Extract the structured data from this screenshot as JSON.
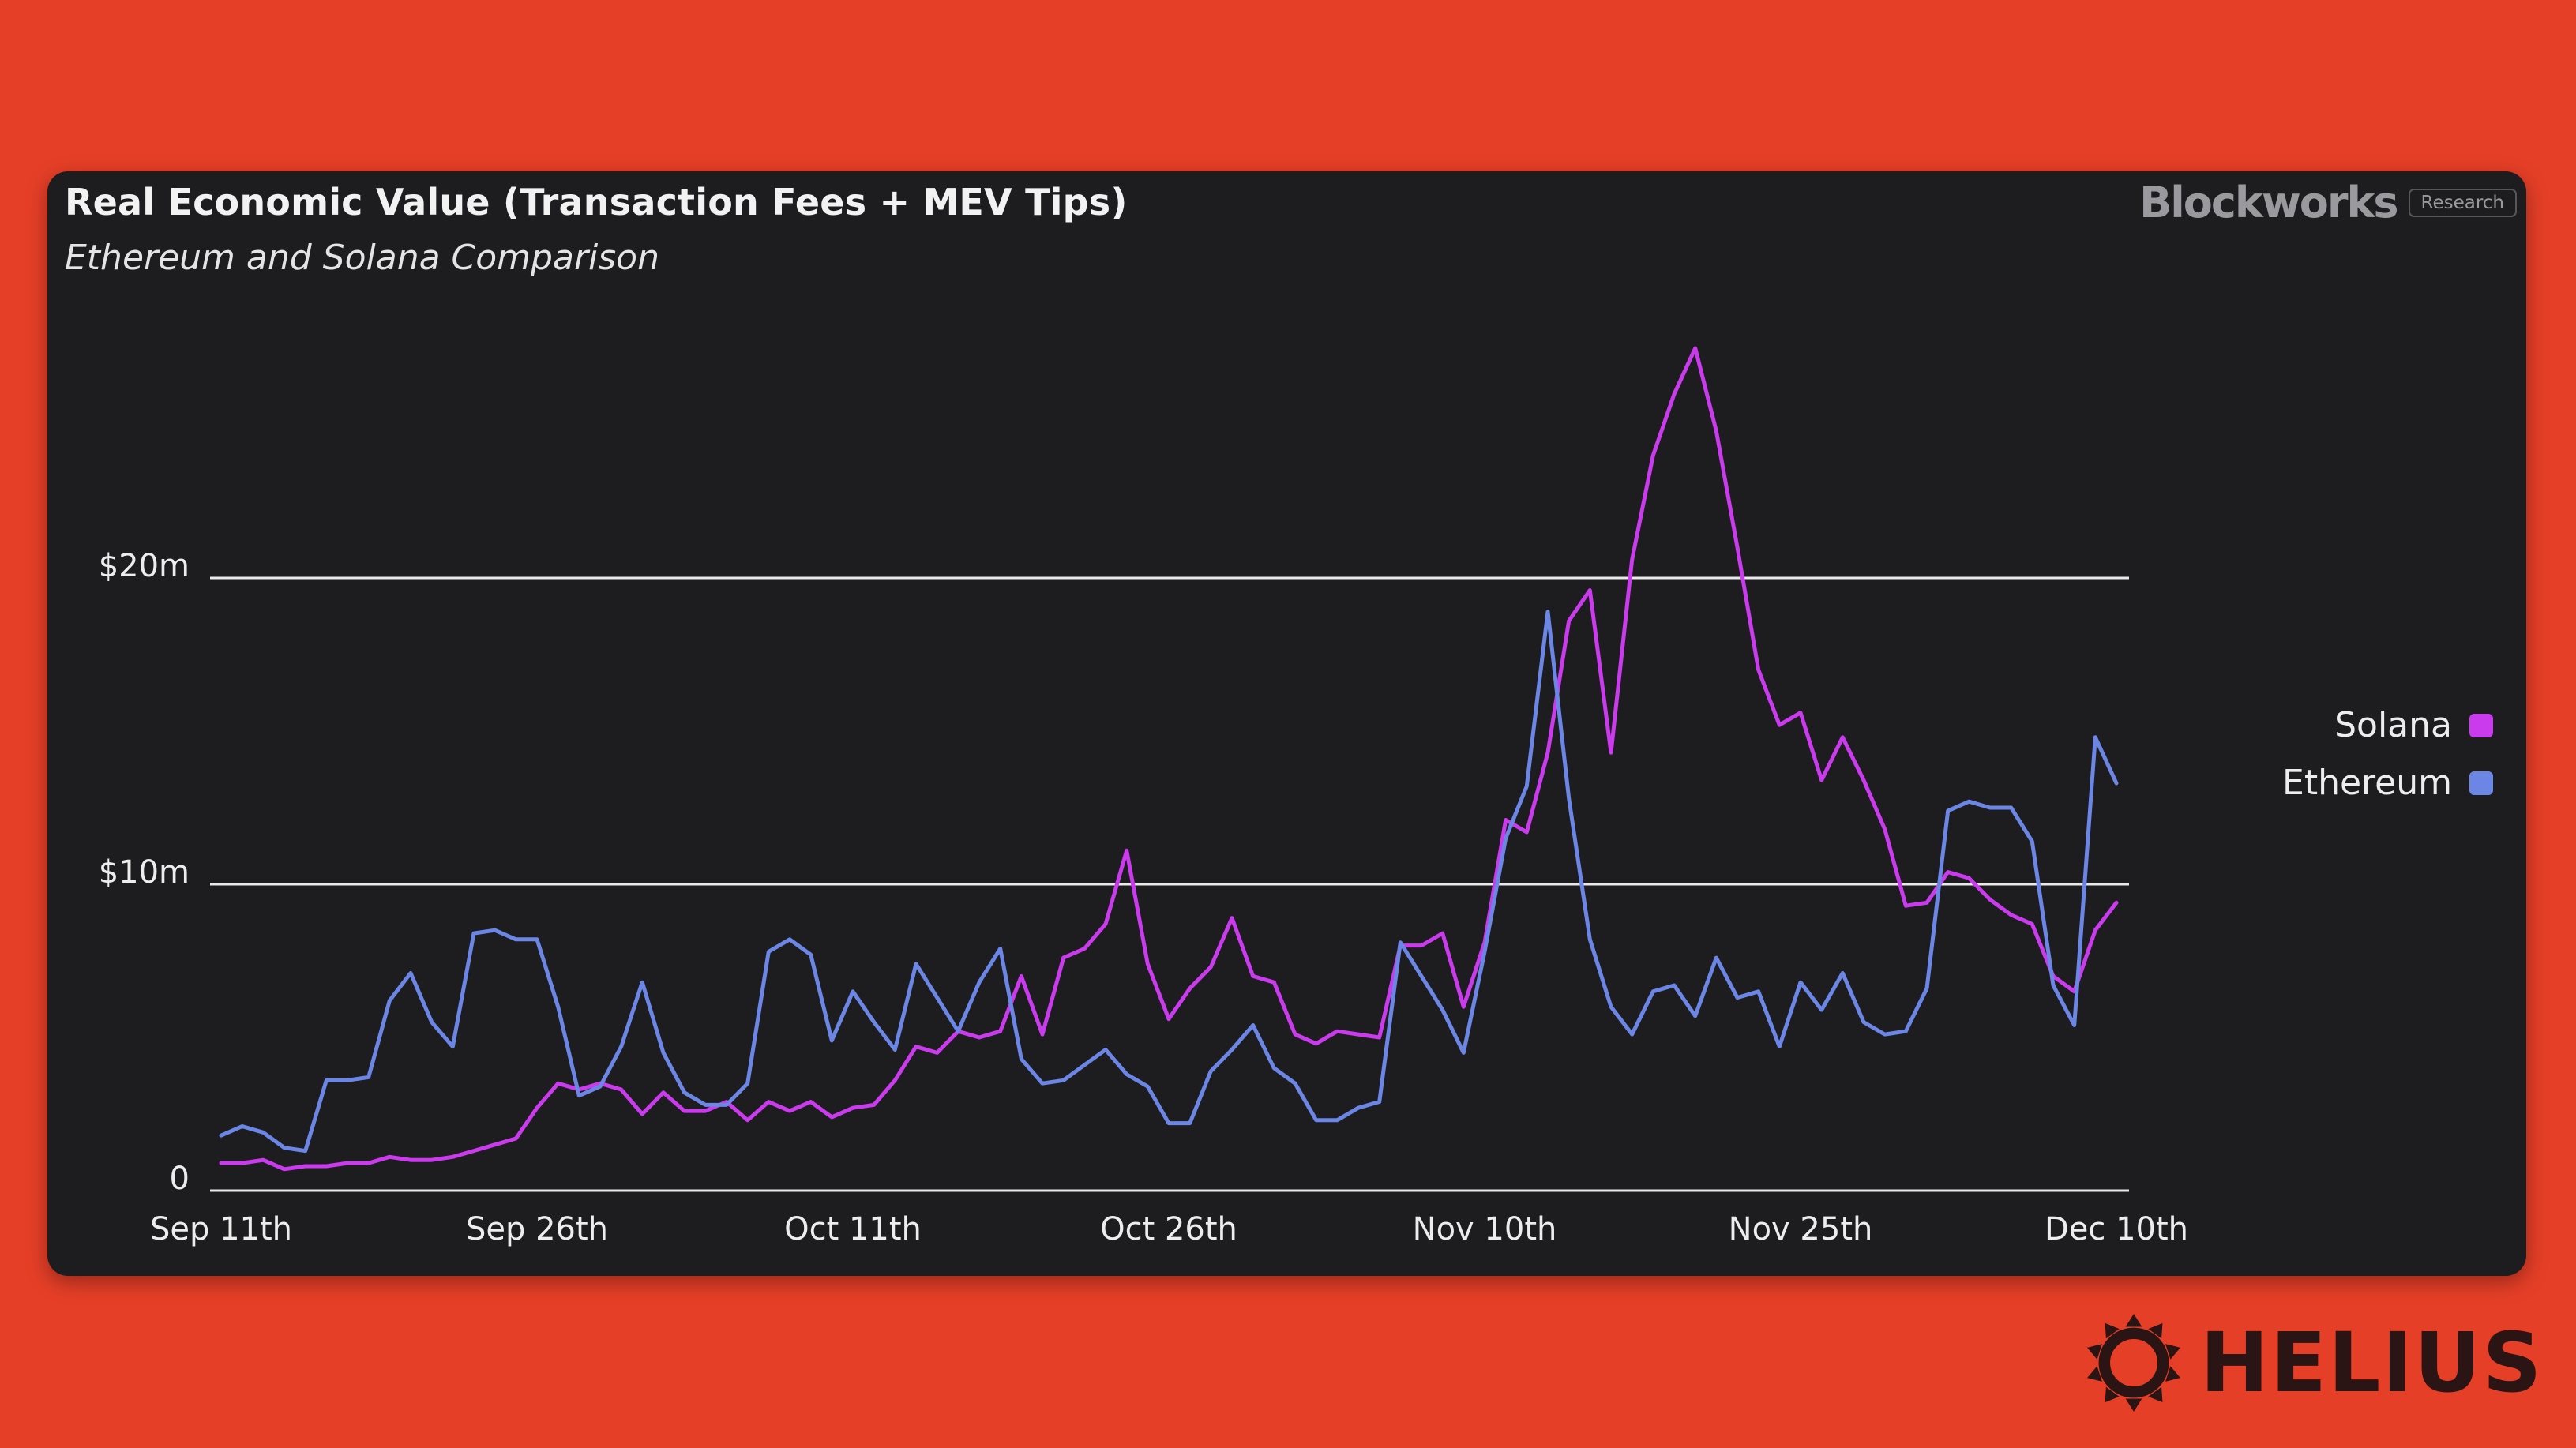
{
  "header": {
    "title": "Real Economic Value (Transaction Fees + MEV Tips)",
    "subtitle": "Ethereum and Solana Comparison"
  },
  "brand": {
    "name": "Blockworks",
    "tag": "Research"
  },
  "footer_logo": {
    "icon": "helius-sun-icon",
    "text": "HELIUS"
  },
  "colors": {
    "background": "#E63F27",
    "card": "#1D1D20",
    "solana": "#C93BEC",
    "ethereum": "#6C86E6",
    "grid": "#E9E9E9",
    "logo": "#2A1414"
  },
  "chart_data": {
    "type": "line",
    "title": "Real Economic Value (Transaction Fees + MEV Tips)",
    "subtitle": "Ethereum and Solana Comparison",
    "xlabel": "",
    "ylabel": "",
    "ylim": [
      0,
      20
    ],
    "yticks": [
      {
        "value": 0,
        "label": "0"
      },
      {
        "value": 10,
        "label": "$10m"
      },
      {
        "value": 20,
        "label": "$20m"
      }
    ],
    "grid": true,
    "x_start": 0,
    "x_end": 90,
    "xticks": [
      {
        "day": 0,
        "label": "Sep 11th"
      },
      {
        "day": 15,
        "label": "Sep 26th"
      },
      {
        "day": 30,
        "label": "Oct 11th"
      },
      {
        "day": 45,
        "label": "Oct 26th"
      },
      {
        "day": 60,
        "label": "Nov 10th"
      },
      {
        "day": 75,
        "label": "Nov 25th"
      },
      {
        "day": 90,
        "label": "Dec 10th"
      }
    ],
    "legend_position": "right",
    "series": [
      {
        "name": "Solana",
        "color": "#C93BEC",
        "values": [
          0.9,
          0.9,
          1.0,
          0.7,
          0.8,
          0.8,
          0.9,
          0.9,
          1.1,
          1.0,
          1.0,
          1.1,
          1.3,
          1.5,
          1.7,
          2.7,
          3.5,
          3.3,
          3.5,
          3.3,
          2.5,
          3.2,
          2.6,
          2.6,
          2.9,
          2.3,
          2.9,
          2.6,
          2.9,
          2.4,
          2.7,
          2.8,
          3.6,
          4.7,
          4.5,
          5.2,
          5.0,
          5.2,
          7.0,
          5.1,
          7.6,
          7.9,
          8.7,
          11.1,
          7.4,
          5.6,
          6.6,
          7.3,
          8.9,
          7.0,
          6.8,
          5.1,
          4.8,
          5.2,
          5.1,
          5.0,
          8.0,
          8.0,
          8.4,
          6.0,
          8.1,
          12.1,
          11.7,
          14.3,
          18.6,
          19.6,
          14.3,
          20.6,
          24.0,
          26.0,
          27.5,
          24.8,
          21.0,
          17.0,
          15.2,
          15.6,
          13.4,
          14.8,
          13.4,
          11.8,
          9.3,
          9.4,
          10.4,
          10.2,
          9.5,
          9.0,
          8.7,
          7.0,
          6.5,
          8.5,
          9.4
        ]
      },
      {
        "name": "Ethereum",
        "color": "#6C86E6",
        "values": [
          1.8,
          2.1,
          1.9,
          1.4,
          1.3,
          3.6,
          3.6,
          3.7,
          6.2,
          7.1,
          5.5,
          4.7,
          8.4,
          8.5,
          8.2,
          8.2,
          6.0,
          3.1,
          3.4,
          4.7,
          6.8,
          4.5,
          3.2,
          2.8,
          2.8,
          3.5,
          7.8,
          8.2,
          7.7,
          4.9,
          6.5,
          5.5,
          4.6,
          7.4,
          6.3,
          5.2,
          6.8,
          7.9,
          4.3,
          3.5,
          3.6,
          4.1,
          4.6,
          3.8,
          3.4,
          2.2,
          2.2,
          3.9,
          4.6,
          5.4,
          4.0,
          3.5,
          2.3,
          2.3,
          2.7,
          2.9,
          8.1,
          7.0,
          5.9,
          4.5,
          7.8,
          11.5,
          13.2,
          18.9,
          12.8,
          8.2,
          6.0,
          5.1,
          6.5,
          6.7,
          5.7,
          7.6,
          6.3,
          6.5,
          4.7,
          6.8,
          5.9,
          7.1,
          5.5,
          5.1,
          5.2,
          6.6,
          12.4,
          12.7,
          12.5,
          12.5,
          11.4,
          6.7,
          5.4,
          14.8,
          13.3
        ]
      }
    ]
  }
}
